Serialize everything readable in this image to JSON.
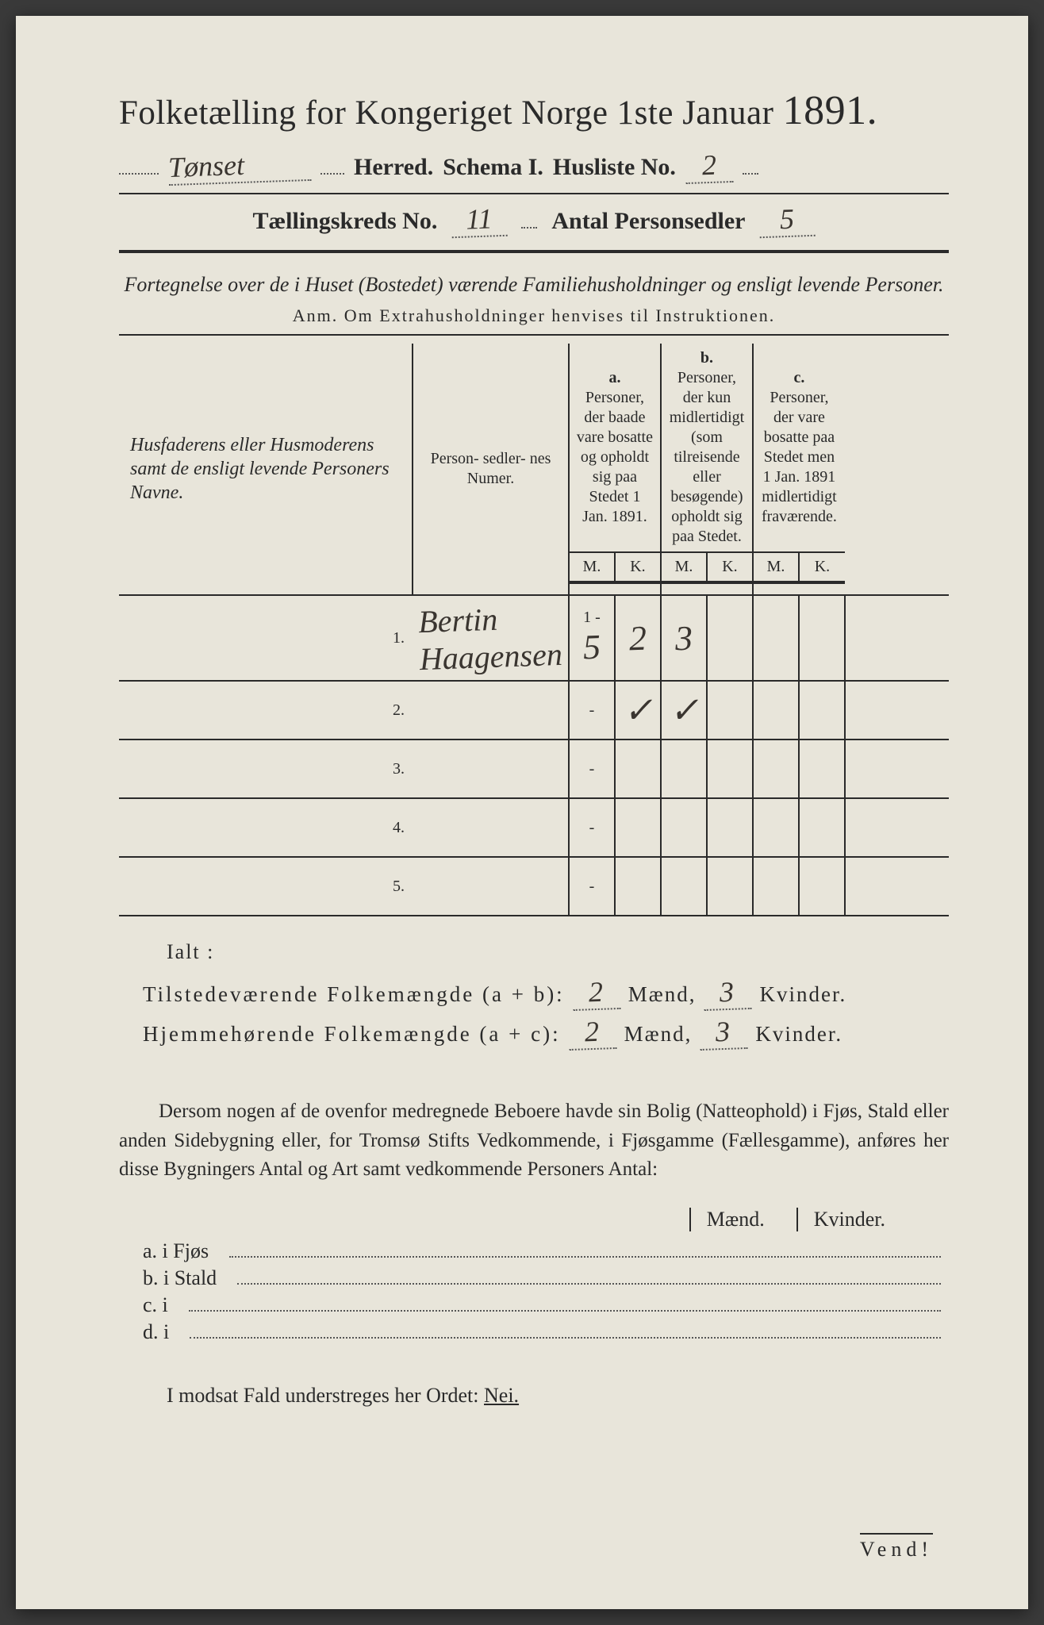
{
  "title_prefix": "Folketælling for Kongeriget Norge 1ste Januar",
  "year": "1891.",
  "herred_value": "Tønset",
  "herred_label": "Herred.",
  "schema_label": "Schema I.",
  "husliste_label": "Husliste No.",
  "husliste_value": "2",
  "kreds_label": "Tællingskreds No.",
  "kreds_value": "11",
  "antal_label": "Antal Personsedler",
  "antal_value": "5",
  "subtitle": "Fortegnelse over de i Huset (Bostedet) værende Familiehusholdninger og ensligt levende Personer.",
  "anm": "Anm.  Om Extrahusholdninger henvises til Instruktionen.",
  "colheads": {
    "name": "Husfaderens eller Husmoderens samt de ensligt levende Personers Navne.",
    "numer": "Person-\nsedler-\nnes\nNumer.",
    "a_label": "a.",
    "a": "Personer, der baade vare bosatte og opholdt sig paa Stedet 1 Jan. 1891.",
    "b_label": "b.",
    "b": "Personer, der kun midlertidigt (som tilreisende eller besøgende) opholdt sig paa Stedet.",
    "c_label": "c.",
    "c": "Personer, der vare bosatte paa Stedet men 1 Jan. 1891 midlertidigt fraværende.",
    "m": "M.",
    "k": "K."
  },
  "rows": [
    {
      "n": "1.",
      "name": "Bertin Haagensen",
      "numer_prefix": "1 -",
      "numer": "5",
      "a_m": "2",
      "a_k": "3",
      "b_m": "",
      "b_k": "",
      "c_m": "",
      "c_k": ""
    },
    {
      "n": "2.",
      "name": "",
      "numer_prefix": "",
      "numer": "-",
      "a_m": "✓",
      "a_k": "✓",
      "b_m": "",
      "b_k": "",
      "c_m": "",
      "c_k": ""
    },
    {
      "n": "3.",
      "name": "",
      "numer_prefix": "",
      "numer": "-",
      "a_m": "",
      "a_k": "",
      "b_m": "",
      "b_k": "",
      "c_m": "",
      "c_k": ""
    },
    {
      "n": "4.",
      "name": "",
      "numer_prefix": "",
      "numer": "-",
      "a_m": "",
      "a_k": "",
      "b_m": "",
      "b_k": "",
      "c_m": "",
      "c_k": ""
    },
    {
      "n": "5.",
      "name": "",
      "numer_prefix": "",
      "numer": "-",
      "a_m": "",
      "a_k": "",
      "b_m": "",
      "b_k": "",
      "c_m": "",
      "c_k": ""
    }
  ],
  "ialt": "Ialt :",
  "sum1_label": "Tilstedeværende Folkemængde (a + b):",
  "sum2_label": "Hjemmehørende Folkemængde (a + c):",
  "maend": "Mænd,",
  "kvinder": "Kvinder.",
  "sum1_m": "2",
  "sum1_k": "3",
  "sum2_m": "2",
  "sum2_k": "3",
  "para": "Dersom nogen af de ovenfor medregnede Beboere havde sin Bolig (Natteophold) i Fjøs, Stald eller anden Sidebygning eller, for Tromsø Stifts Vedkommende, i Fjøsgamme (Fællesgamme), anføres her disse Bygningers Antal og Art samt vedkommende Personers Antal:",
  "mk_m": "Mænd.",
  "mk_k": "Kvinder.",
  "list_a": "a.  i      Fjøs",
  "list_b": "b.  i      Stald",
  "list_c": "c.  i",
  "list_d": "d.  i",
  "nei_line_pre": "I modsat Fald understreges her Ordet:",
  "nei": "Nei.",
  "vend": "Vend!"
}
